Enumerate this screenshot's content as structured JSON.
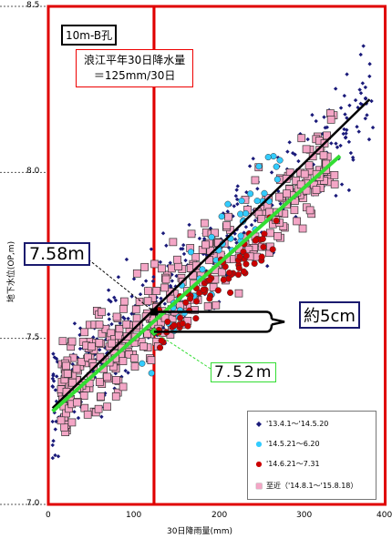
{
  "chart_data": {
    "type": "scatter",
    "title": "10m-B孔",
    "annotation_box": {
      "line1": "浪江平年30日降水量",
      "line2": "＝125mm/30日"
    },
    "xlabel": "30日降雨量(mm)",
    "ylabel": "地下水位(OP,m)",
    "xlim": [
      0,
      400
    ],
    "ylim": [
      7.0,
      8.5
    ],
    "x_ticks": [
      "0",
      "100",
      "200",
      "300",
      "400"
    ],
    "y_ticks": [
      "7.0",
      "7.5",
      "8.0",
      "8.5"
    ],
    "reference_x": 125,
    "value_label_black": "7.58m",
    "value_label_green": "7.52m",
    "difference_label": "約5cm",
    "legend_position": "bottom-right",
    "series": [
      {
        "name": "'13.4.1～'14.5.20",
        "marker": "small-diamond",
        "color": "#1a1a7a",
        "count": 420,
        "trend": {
          "x0": 5,
          "y0": 7.29,
          "x1": 380,
          "y1": 8.22
        }
      },
      {
        "name": "'14.5.21～6.20",
        "marker": "circle",
        "color": "#33ccff",
        "count": 45
      },
      {
        "name": "'14.6.21～7.31",
        "marker": "circle",
        "color": "#cc0000",
        "count": 70
      },
      {
        "name": "至近（'14.8.1～'15.8.18）",
        "marker": "square",
        "color": "#f4a6c6",
        "count": 380,
        "trend": {
          "x0": 5,
          "y0": 7.28,
          "x1": 345,
          "y1": 8.05
        }
      }
    ],
    "intersections": [
      {
        "x": 125,
        "y": 7.58
      },
      {
        "x": 125,
        "y": 7.52
      }
    ]
  },
  "colors": {
    "frame": "#e00000",
    "black_trend": "#000000",
    "green_trend": "#33dd33"
  }
}
